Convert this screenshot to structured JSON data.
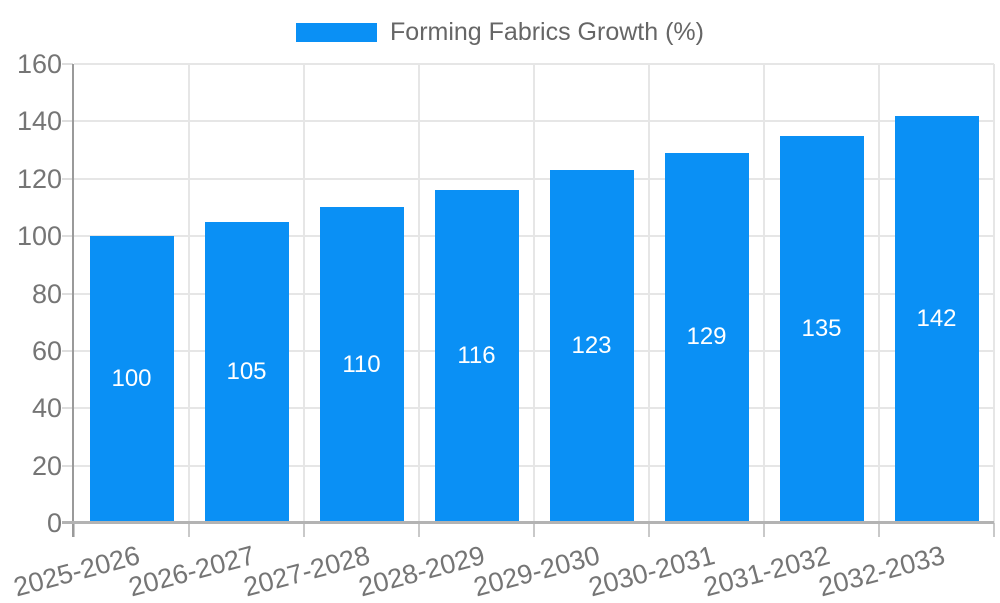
{
  "legend": {
    "label": "Forming Fabrics Growth (%)"
  },
  "colors": {
    "bar": "#0a90f5",
    "bar_value_text": "#ffffff",
    "axis_text": "#757575",
    "legend_text": "#666666",
    "grid": "#e6e6e6",
    "y_axis_line": "#9a9a9a",
    "x_axis_line": "#b3b3b3",
    "background": "#ffffff"
  },
  "chart_data": {
    "type": "bar",
    "title": "Forming Fabrics Growth (%)",
    "categories": [
      "2025-2026",
      "2026-2027",
      "2027-2028",
      "2028-2029",
      "2029-2030",
      "2030-2031",
      "2031-2032",
      "2032-2033"
    ],
    "values": [
      100,
      105,
      110,
      116,
      123,
      129,
      135,
      142
    ],
    "xlabel": "",
    "ylabel": "",
    "ylim": [
      0,
      160
    ],
    "y_tick_step": 20,
    "y_ticks": [
      0,
      20,
      40,
      60,
      80,
      100,
      120,
      140,
      160
    ],
    "grid": "on",
    "legend_position": "top-center",
    "value_labels": "inside-center",
    "x_label_rotation_deg": -15
  }
}
